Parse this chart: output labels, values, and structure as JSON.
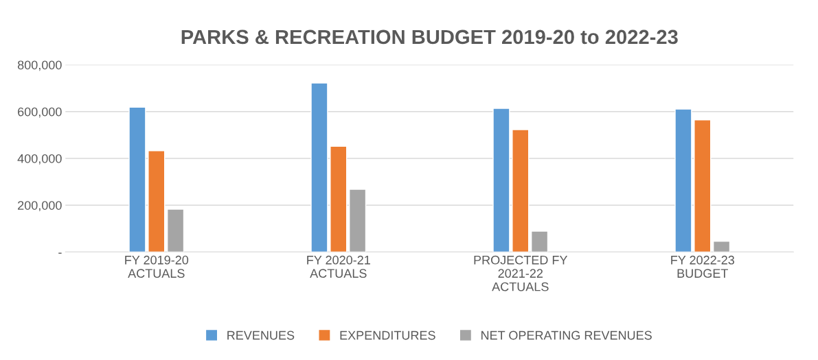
{
  "chart_data": {
    "type": "bar",
    "title": "PARKS & RECREATION BUDGET 2019-20 to 2022-23",
    "categories": [
      "FY 2019-20\nACTUALS",
      "FY 2020-21\nACTUALS",
      "PROJECTED FY\n2021-22\nACTUALS",
      "FY 2022-23\nBUDGET"
    ],
    "series": [
      {
        "name": "REVENUES",
        "color": "#5b9bd5",
        "values": [
          619000,
          722000,
          614000,
          611000
        ]
      },
      {
        "name": "EXPENDITURES",
        "color": "#ed7d31",
        "values": [
          433000,
          452000,
          523000,
          565000
        ]
      },
      {
        "name": "NET OPERATING REVENUES",
        "color": "#a5a5a5",
        "values": [
          183000,
          268000,
          89000,
          46000
        ]
      }
    ],
    "ylim": [
      0,
      800000
    ],
    "yticks": [
      {
        "value": 0,
        "label": "-"
      },
      {
        "value": 200000,
        "label": "200,000"
      },
      {
        "value": 400000,
        "label": "400,000"
      },
      {
        "value": 600000,
        "label": "600,000"
      },
      {
        "value": 800000,
        "label": "800,000"
      }
    ],
    "grid": "y",
    "legend": "bottom"
  }
}
